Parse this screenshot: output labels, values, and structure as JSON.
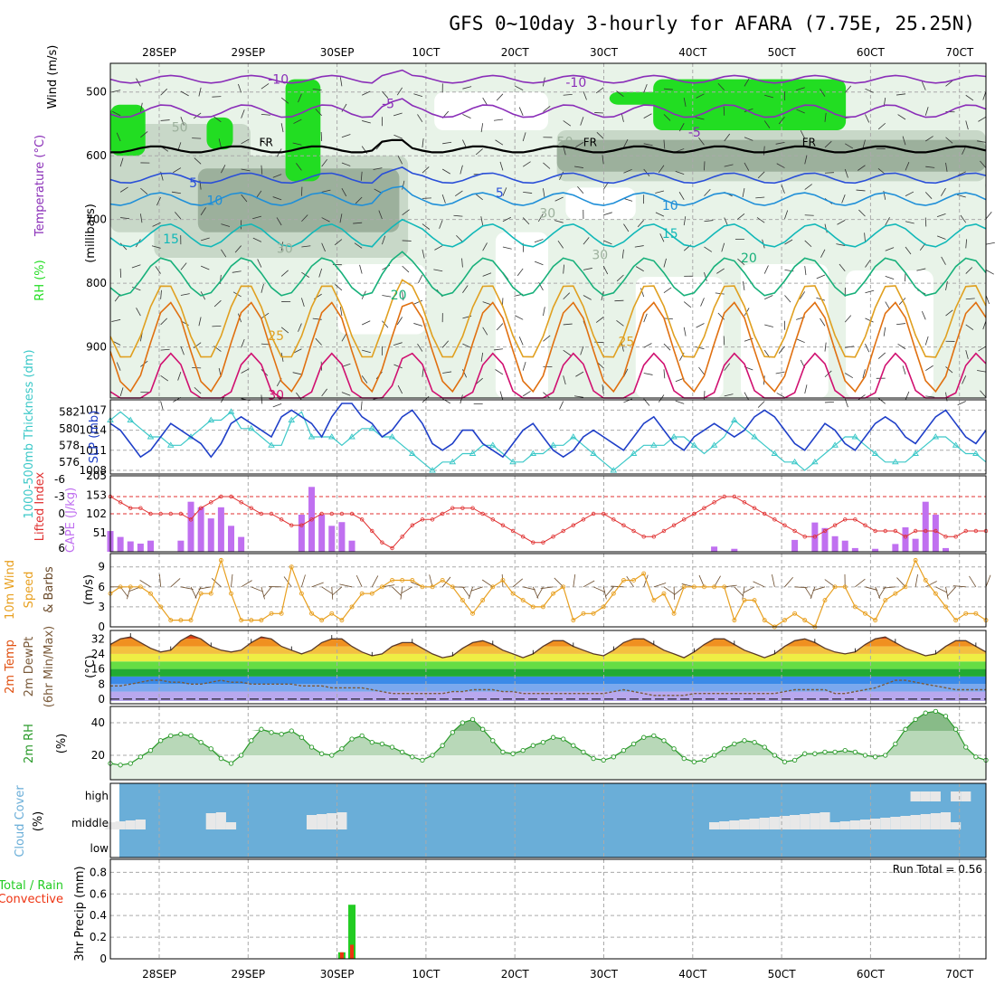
{
  "title": "GFS 0~10day 3-hourly for AFARA (7.75E, 25.25N)",
  "x_dates": [
    "28SEP",
    "29SEP",
    "30SEP",
    "1OCT",
    "2OCT",
    "3OCT",
    "4OCT",
    "5OCT",
    "6OCT",
    "7OCT"
  ],
  "x_dates_top_display": [
    "28SEP",
    "29SEP",
    "30SEP",
    "10CT",
    "20CT",
    "30CT",
    "40CT",
    "50CT",
    "60CT",
    "70CT"
  ],
  "colors": {
    "rh_light": "#e8f3e8",
    "rh_mid": "#c8d8c8",
    "rh_dark": "#9cb09c",
    "rh_green": "#22dd22",
    "temp_neg": "#8a2eb8",
    "temp_5": "#2a4fd8",
    "temp_10": "#1f8fd8",
    "temp_15": "#11b8b8",
    "temp_20": "#17b07a",
    "temp_25": "#e0a020",
    "temp_28": "#e07010",
    "temp_30": "#d01070",
    "slp": "#1f3fc8",
    "thickness": "#3cc8c8",
    "cape": "#c070f0",
    "li": "#e03030",
    "wind_speed": "#e8a020",
    "temp2m": "#e05010",
    "dew": "#7a5a3a",
    "rh2m": "#2a9a2a",
    "cloud": "#6aaed8",
    "cloud_white": "#e8e8e8",
    "precip_total": "#22cc22",
    "precip_conv": "#ee3311"
  },
  "panels": {
    "upper_air": {
      "ylabel_wind": "Wind (m/s)",
      "ylabel_temp": "Temperature (°C)",
      "ylabel_rh": "RH (%)",
      "ylabel_units": "(millibars)",
      "yticks": [
        500,
        600,
        700,
        800,
        900
      ],
      "frz_label": "FR",
      "contour_labels": [
        {
          "t": "-10",
          "x": 0.18,
          "p": 480,
          "color": "temp_neg"
        },
        {
          "t": "-10",
          "x": 0.52,
          "p": 485,
          "color": "temp_neg"
        },
        {
          "t": "-5",
          "x": 0.31,
          "p": 518,
          "color": "temp_neg"
        },
        {
          "t": "-5",
          "x": 0.66,
          "p": 563,
          "color": "temp_neg"
        },
        {
          "t": "5",
          "x": 0.09,
          "p": 642,
          "color": "temp_5"
        },
        {
          "t": "5",
          "x": 0.44,
          "p": 658,
          "color": "temp_5"
        },
        {
          "t": "10",
          "x": 0.11,
          "p": 670,
          "color": "temp_10"
        },
        {
          "t": "10",
          "x": 0.63,
          "p": 678,
          "color": "temp_10"
        },
        {
          "t": "15",
          "x": 0.06,
          "p": 730,
          "color": "temp_15"
        },
        {
          "t": "15",
          "x": 0.63,
          "p": 722,
          "color": "temp_15"
        },
        {
          "t": "20",
          "x": 0.32,
          "p": 818,
          "color": "temp_20"
        },
        {
          "t": "20",
          "x": 0.72,
          "p": 760,
          "color": "temp_20"
        },
        {
          "t": "25",
          "x": 0.18,
          "p": 882,
          "color": "temp_25"
        },
        {
          "t": "25",
          "x": 0.58,
          "p": 891,
          "color": "temp_25"
        },
        {
          "t": "30",
          "x": 0.18,
          "p": 975,
          "color": "temp_30"
        },
        {
          "t": "50",
          "x": 0.07,
          "p": 555,
          "color": "rh_dark"
        },
        {
          "t": "50",
          "x": 0.51,
          "p": 578,
          "color": "rh_dark"
        },
        {
          "t": "30",
          "x": 0.19,
          "p": 745,
          "color": "rh_dark"
        },
        {
          "t": "30",
          "x": 0.49,
          "p": 690,
          "color": "rh_dark"
        },
        {
          "t": "30",
          "x": 0.55,
          "p": 755,
          "color": "rh_dark"
        }
      ]
    },
    "slp_thickness": {
      "ylabel_left": "1000-500mb Thickness (dm)",
      "ylabel_right": "SLP (mb)",
      "thickness_ticks": [
        576,
        578,
        580,
        582
      ],
      "slp_ticks": [
        1008,
        1011,
        1014,
        1017
      ]
    },
    "cape_li": {
      "ylabel_left": "Lifted Index",
      "ylabel_right": "CAPE (J/kg)",
      "li_ticks": [
        "-6",
        "-3",
        "0",
        "3",
        "6"
      ],
      "cape_ticks": [
        "205",
        "153",
        "102",
        "51"
      ]
    },
    "wind10m": {
      "ylabel1": "10m Wind",
      "ylabel2": "Speed",
      "ylabel3": "& Barbs",
      "yunits": "(m/s)",
      "yticks": [
        0,
        3,
        6,
        9
      ]
    },
    "temp2m": {
      "ylabel1": "2m Temp",
      "ylabel2": "2m DewPt",
      "ylabel3": "(6hr Min/Max)",
      "yunits": "(°C)",
      "yticks": [
        0,
        8,
        16,
        24,
        32
      ]
    },
    "rh2m": {
      "ylabel": "2m RH",
      "yunits": "(%)",
      "yticks": [
        20,
        40
      ]
    },
    "cloud": {
      "ylabel": "Cloud Cover",
      "yunits": "(%)",
      "levels": [
        "high",
        "middle",
        "low"
      ]
    },
    "precip": {
      "ylabel1": "Total / Rain",
      "ylabel2": "Convective",
      "yunits": "3hr Precip (mm)",
      "yticks": [
        "0",
        "0.2",
        "0.4",
        "0.6",
        "0.8"
      ],
      "run_total": "Run Total = 0.56"
    }
  },
  "chart_data": {
    "type": "meteogram",
    "title": "GFS 0~10day 3-hourly for AFARA (7.75E, 25.25N)",
    "x_start": "27SEP 12Z",
    "x_step_hours": 3,
    "slp": [
      1015,
      1014,
      1012,
      1010,
      1011,
      1013,
      1015,
      1014,
      1013,
      1012,
      1010,
      1012,
      1015,
      1016,
      1015,
      1014,
      1013,
      1016,
      1017,
      1016,
      1015,
      1013,
      1016,
      1018,
      1018,
      1016,
      1015,
      1013,
      1014,
      1016,
      1017,
      1015,
      1012,
      1011,
      1012,
      1014,
      1014,
      1012,
      1011,
      1010,
      1012,
      1014,
      1015,
      1013,
      1011,
      1010,
      1011,
      1013,
      1014,
      1013,
      1012,
      1011,
      1013,
      1015,
      1016,
      1014,
      1012,
      1011,
      1013,
      1014,
      1015,
      1014,
      1013,
      1014,
      1016,
      1017,
      1016,
      1014,
      1012,
      1011,
      1013,
      1015,
      1014,
      1012,
      1011,
      1013,
      1015,
      1016,
      1015,
      1013,
      1012,
      1014,
      1016,
      1017,
      1015,
      1013,
      1012,
      1014
    ],
    "thickness": [
      581,
      582,
      581,
      580,
      579,
      579,
      578,
      578,
      579,
      580,
      581,
      581,
      582,
      580,
      580,
      579,
      578,
      578,
      581,
      582,
      579,
      579,
      579,
      578,
      579,
      580,
      580,
      579,
      579,
      578,
      577,
      576,
      575,
      576,
      576,
      577,
      577,
      578,
      578,
      577,
      576,
      576,
      577,
      577,
      578,
      578,
      579,
      578,
      577,
      576,
      575,
      576,
      577,
      578,
      578,
      578,
      579,
      579,
      578,
      577,
      578,
      579,
      581,
      580,
      579,
      578,
      577,
      576,
      576,
      575,
      576,
      577,
      578,
      579,
      579,
      578,
      577,
      576,
      576,
      576,
      577,
      578,
      579,
      579,
      578,
      577,
      577,
      576
    ],
    "cape": [
      56,
      40,
      28,
      22,
      30,
      0,
      0,
      30,
      135,
      120,
      90,
      120,
      70,
      40,
      0,
      0,
      0,
      0,
      0,
      100,
      175,
      100,
      70,
      80,
      30,
      0,
      0,
      0,
      0,
      0,
      0,
      0,
      0,
      0,
      0,
      0,
      0,
      0,
      0,
      0,
      0,
      0,
      0,
      0,
      0,
      0,
      0,
      0,
      0,
      0,
      0,
      0,
      0,
      0,
      0,
      0,
      0,
      0,
      0,
      0,
      0,
      0,
      0,
      0,
      0,
      0,
      0,
      0,
      0,
      0,
      0,
      0,
      0,
      0,
      0,
      0,
      0,
      0,
      0,
      0,
      0,
      0,
      0,
      0,
      0,
      0,
      0,
      0
    ],
    "cape_late": [
      {
        "i": 60,
        "v": 14
      },
      {
        "i": 62,
        "v": 8
      },
      {
        "i": 68,
        "v": 32
      },
      {
        "i": 70,
        "v": 79
      },
      {
        "i": 71,
        "v": 64
      },
      {
        "i": 72,
        "v": 42
      },
      {
        "i": 73,
        "v": 30
      },
      {
        "i": 74,
        "v": 10
      },
      {
        "i": 76,
        "v": 8
      },
      {
        "i": 78,
        "v": 21
      },
      {
        "i": 79,
        "v": 66
      },
      {
        "i": 80,
        "v": 35
      },
      {
        "i": 81,
        "v": 135
      },
      {
        "i": 82,
        "v": 100
      },
      {
        "i": 83,
        "v": 10
      }
    ],
    "lifted_index": [
      -3,
      -2,
      -1,
      -1,
      0,
      0,
      0,
      0,
      1,
      -1,
      -2,
      -3,
      -3,
      -2,
      -1,
      0,
      0,
      1,
      2,
      2,
      1,
      0,
      0,
      0,
      0,
      1,
      3,
      5,
      6,
      4,
      2,
      1,
      1,
      0,
      -1,
      -1,
      -1,
      0,
      1,
      2,
      3,
      4,
      5,
      5,
      4,
      3,
      2,
      1,
      0,
      0,
      1,
      2,
      3,
      4,
      4,
      3,
      2,
      1,
      0,
      -1,
      -2,
      -3,
      -3,
      -2,
      -1,
      0,
      1,
      2,
      3,
      4,
      4,
      3,
      2,
      1,
      1,
      2,
      3,
      3,
      3,
      4,
      3,
      3,
      3,
      4,
      4,
      3,
      3,
      3
    ],
    "wind_speed": [
      5,
      6,
      6,
      6,
      5,
      3,
      1,
      1,
      1,
      5,
      5,
      10,
      5,
      1,
      1,
      1,
      2,
      2,
      9,
      5,
      2,
      1,
      2,
      1,
      3,
      5,
      5,
      6,
      7,
      7,
      7,
      6,
      6,
      7,
      6,
      4,
      2,
      4,
      6,
      7,
      5,
      4,
      3,
      3,
      5,
      6,
      1,
      2,
      2,
      3,
      5,
      7,
      7,
      8,
      4,
      5,
      2,
      6,
      6,
      6,
      6,
      6,
      1,
      4,
      4,
      1,
      0,
      1,
      2,
      1,
      0,
      4,
      6,
      6,
      3,
      2,
      1,
      4,
      5,
      6,
      10,
      7,
      5,
      3,
      1,
      2,
      2,
      1
    ],
    "temp2m": [
      29,
      32,
      33,
      30,
      27,
      25,
      26,
      31,
      34,
      32,
      28,
      26,
      25,
      26,
      30,
      33,
      32,
      28,
      26,
      24,
      26,
      30,
      32,
      32,
      28,
      25,
      23,
      24,
      28,
      30,
      30,
      27,
      24,
      22,
      23,
      27,
      30,
      31,
      29,
      26,
      24,
      22,
      24,
      28,
      31,
      31,
      28,
      26,
      24,
      23,
      26,
      30,
      32,
      32,
      29,
      26,
      24,
      22,
      25,
      29,
      32,
      32,
      29,
      26,
      24,
      22,
      24,
      28,
      31,
      32,
      30,
      27,
      25,
      24,
      25,
      29,
      32,
      33,
      30,
      27,
      25,
      23,
      24,
      28,
      31,
      31,
      28,
      25
    ],
    "dewpt2m": [
      7,
      7,
      8,
      9,
      10,
      10,
      9,
      9,
      8,
      8,
      9,
      10,
      9,
      9,
      8,
      8,
      8,
      8,
      8,
      7,
      7,
      7,
      6,
      6,
      6,
      6,
      5,
      4,
      3,
      3,
      3,
      3,
      3,
      3,
      4,
      4,
      5,
      5,
      5,
      4,
      4,
      3,
      3,
      3,
      3,
      3,
      3,
      3,
      3,
      3,
      4,
      5,
      4,
      3,
      2,
      2,
      2,
      2,
      3,
      3,
      3,
      3,
      3,
      3,
      3,
      3,
      3,
      4,
      5,
      5,
      5,
      5,
      3,
      3,
      4,
      5,
      6,
      8,
      10,
      10,
      9,
      8,
      7,
      6,
      5,
      5,
      5,
      5
    ],
    "rh2m": [
      15,
      14,
      15,
      19,
      23,
      29,
      32,
      33,
      32,
      28,
      24,
      18,
      15,
      20,
      29,
      36,
      34,
      33,
      35,
      31,
      25,
      21,
      20,
      24,
      30,
      32,
      28,
      27,
      25,
      22,
      19,
      17,
      20,
      26,
      34,
      40,
      42,
      36,
      29,
      22,
      21,
      23,
      26,
      28,
      31,
      30,
      26,
      22,
      18,
      17,
      19,
      23,
      27,
      31,
      32,
      29,
      24,
      18,
      16,
      17,
      20,
      24,
      27,
      29,
      28,
      25,
      20,
      16,
      17,
      21,
      21,
      22,
      22,
      23,
      22,
      20,
      19,
      20,
      27,
      36,
      42,
      46,
      47,
      44,
      36,
      25,
      19,
      17
    ],
    "cloud": {
      "note": "cloud fraction shown as white bars per level"
    },
    "precip_total": [
      {
        "i": 23,
        "v": 0.06
      },
      {
        "i": 24,
        "v": 0.5
      }
    ],
    "precip_conv": [
      {
        "i": 23,
        "v": 0.06
      },
      {
        "i": 24,
        "v": 0.13
      }
    ],
    "run_total": "0.56"
  }
}
